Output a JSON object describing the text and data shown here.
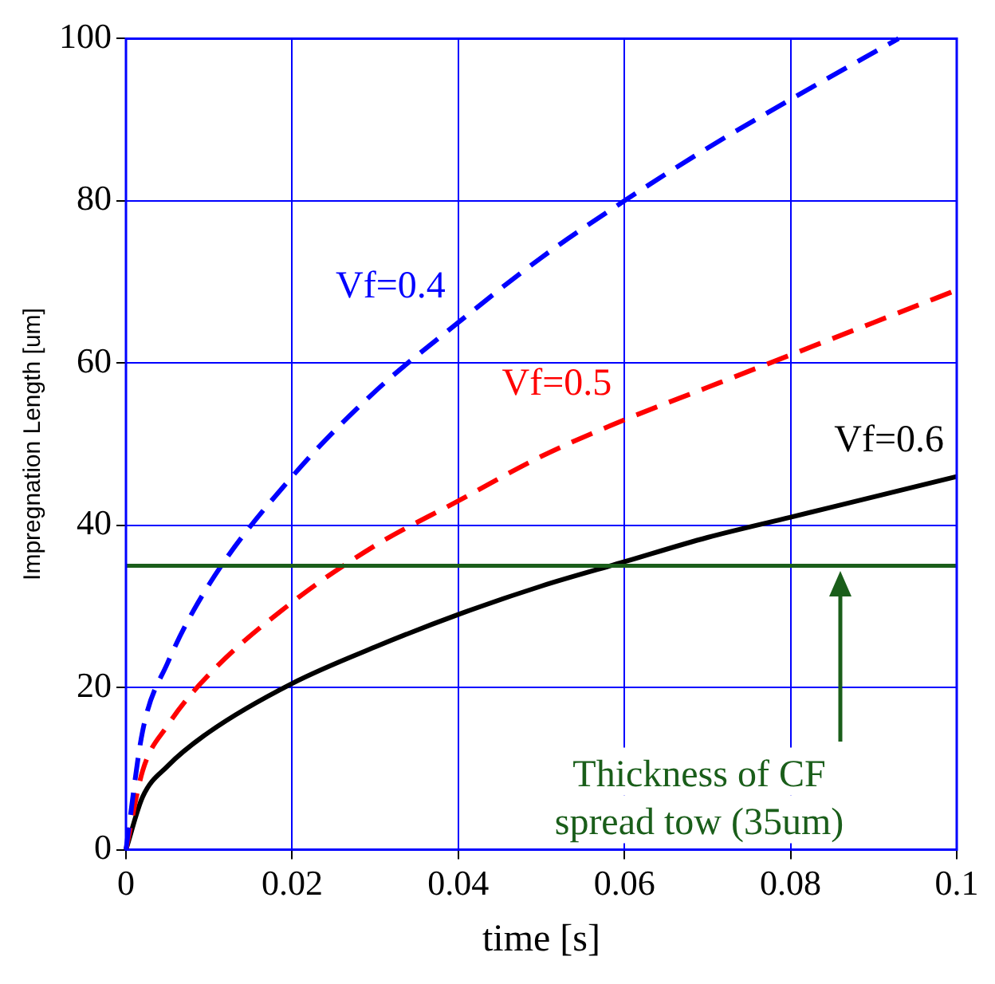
{
  "chart_data": {
    "type": "line",
    "xlabel": "time [s]",
    "ylabel": "Impregnation Length [um]",
    "xlim": [
      0,
      0.1
    ],
    "xticks": [
      0,
      0.02,
      0.04,
      0.06,
      0.08,
      0.1
    ],
    "ylim": [
      0,
      100
    ],
    "yticks": [
      0,
      20,
      40,
      60,
      80,
      100
    ],
    "grid": true,
    "marker": "none",
    "series": [
      {
        "name": "Vf=0.4",
        "color": "#0000ff",
        "line_style": "dashed",
        "x": [
          0,
          0.002,
          0.005,
          0.01,
          0.02,
          0.03,
          0.04,
          0.05,
          0.06,
          0.07,
          0.08,
          0.093
        ],
        "values": [
          0,
          14.6,
          23,
          32.7,
          46,
          56.5,
          65,
          73,
          80,
          86.5,
          92.5,
          100
        ]
      },
      {
        "name": "Vf=0.5",
        "color": "#ff0000",
        "line_style": "dashed",
        "x": [
          0,
          0.002,
          0.005,
          0.01,
          0.02,
          0.03,
          0.04,
          0.05,
          0.06,
          0.07,
          0.08,
          0.09,
          0.1
        ],
        "values": [
          0,
          9.7,
          15.3,
          21.6,
          30.5,
          37.5,
          43,
          48.5,
          53,
          57,
          61,
          65,
          69
        ]
      },
      {
        "name": "Vf=0.6",
        "color": "#000000",
        "line_style": "solid",
        "x": [
          0,
          0.002,
          0.005,
          0.01,
          0.02,
          0.03,
          0.04,
          0.05,
          0.06,
          0.07,
          0.08,
          0.09,
          0.1
        ],
        "values": [
          0,
          6.5,
          10.3,
          14.5,
          20.5,
          25,
          29,
          32.5,
          35.5,
          38.5,
          41,
          43.5,
          46
        ]
      }
    ],
    "ref_lines": [
      {
        "axis": "y",
        "value": 35,
        "label": "Thickness of CF spread tow (35um)",
        "color": "#1a5e1a"
      }
    ]
  }
}
